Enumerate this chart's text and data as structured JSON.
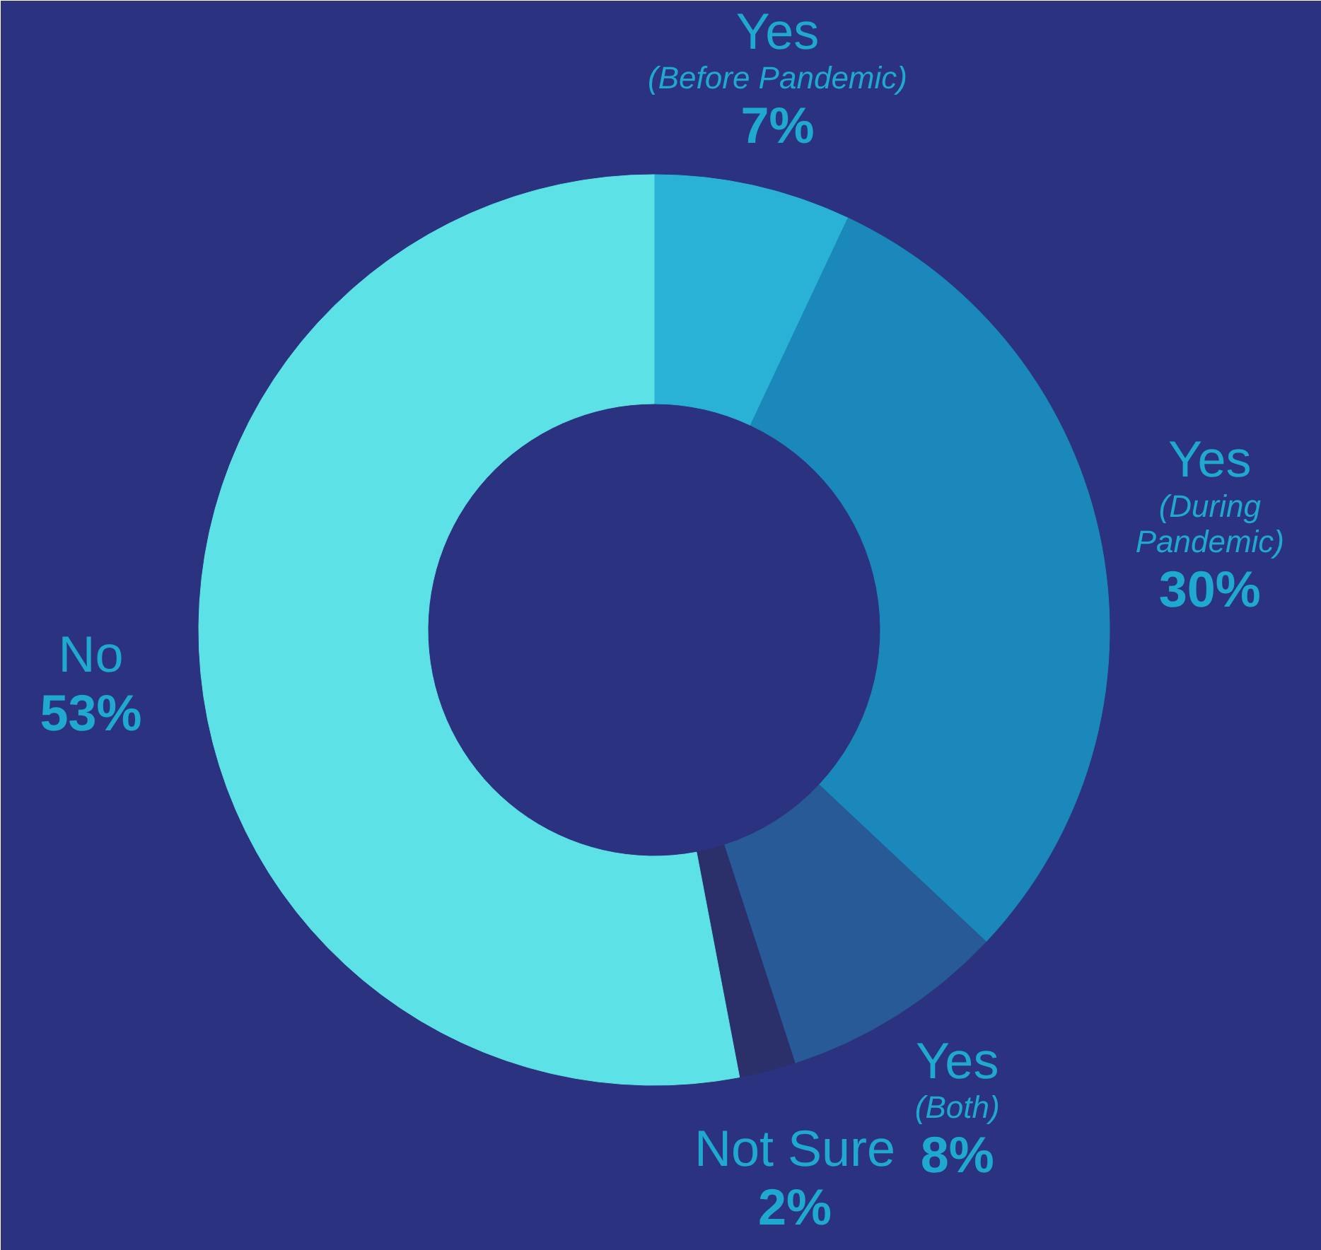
{
  "chart_data": {
    "type": "donut",
    "categories": [
      "Yes\n(Before Pandemic)",
      "Yes\n(During\nPandemic)",
      "Yes\n(Both)",
      "Not Sure",
      "No"
    ],
    "values": [
      7,
      30,
      8,
      2,
      53
    ],
    "colors": [
      "#29b2d6",
      "#1a88bb",
      "#275a96",
      "#2b2f6a",
      "#5ce1e6"
    ],
    "value_labels": [
      "7%",
      "30%",
      "8%",
      "2%",
      "53%"
    ]
  }
}
